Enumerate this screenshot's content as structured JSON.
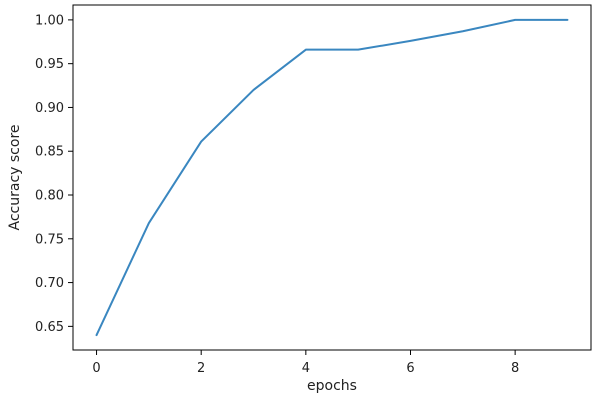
{
  "chart_data": {
    "type": "line",
    "title": "",
    "xlabel": "epochs",
    "ylabel": "Accuracy score",
    "xlim": [
      -0.45,
      9.45
    ],
    "ylim": [
      0.623,
      1.017
    ],
    "grid": false,
    "x_ticks": [
      0,
      2,
      4,
      6,
      8
    ],
    "y_ticks": [
      0.65,
      0.7,
      0.75,
      0.8,
      0.85,
      0.9,
      0.95,
      1.0
    ],
    "x_tick_labels": [
      "0",
      "2",
      "4",
      "6",
      "8"
    ],
    "y_tick_labels": [
      "0.65",
      "0.70",
      "0.75",
      "0.80",
      "0.85",
      "0.90",
      "0.95",
      "1.00"
    ],
    "series": [
      {
        "color": "#3a87c0",
        "x": [
          0,
          1,
          2,
          3,
          4,
          5,
          6,
          7,
          8,
          9
        ],
        "y": [
          0.64,
          0.768,
          0.861,
          0.92,
          0.966,
          0.966,
          0.976,
          0.987,
          1.0,
          1.0
        ]
      }
    ]
  }
}
